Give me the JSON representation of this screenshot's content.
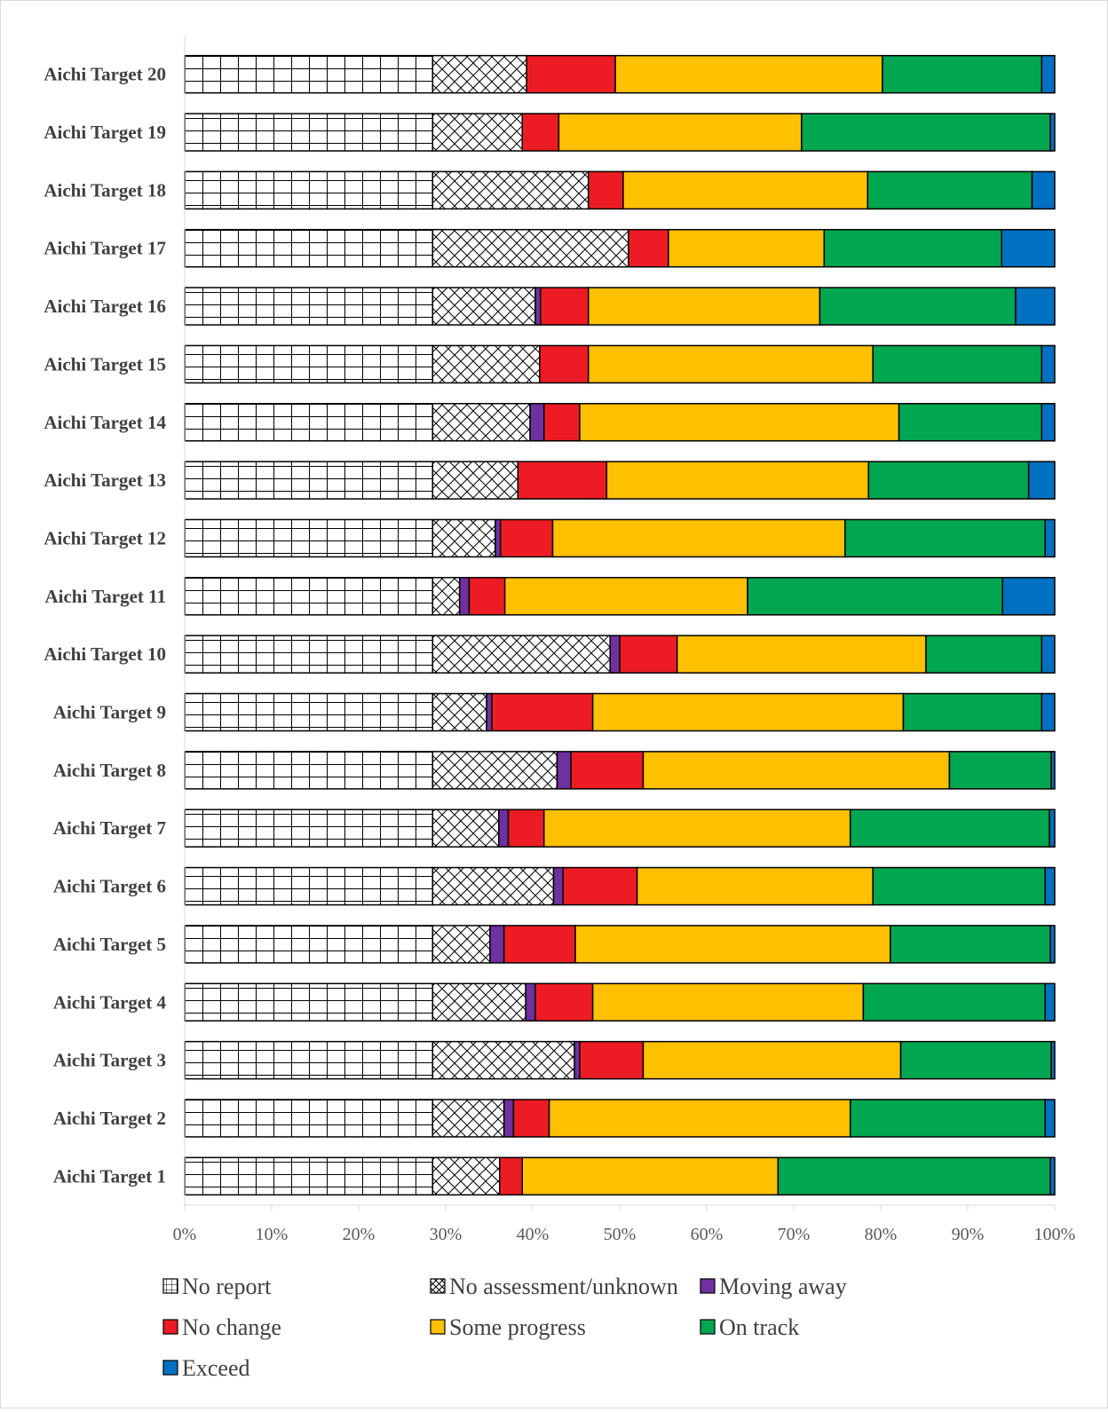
{
  "chart_data": {
    "type": "bar",
    "orientation": "horizontal",
    "stacked": "percent",
    "categories": [
      "Aichi Target 20",
      "Aichi Target 19",
      "Aichi Target 18",
      "Aichi Target 17",
      "Aichi Target 16",
      "Aichi Target 15",
      "Aichi Target 14",
      "Aichi Target 13",
      "Aichi Target 12",
      "Aichi Target 11",
      "Aichi Target 10",
      "Aichi Target 9",
      "Aichi Target 8",
      "Aichi Target 7",
      "Aichi Target 6",
      "Aichi Target 5",
      "Aichi Target 4",
      "Aichi Target 3",
      "Aichi Target 2",
      "Aichi Target 1"
    ],
    "series": [
      {
        "name": "No report",
        "color": "#ffffff",
        "pattern": "grid",
        "values": [
          28.5,
          28.5,
          28.5,
          28.5,
          28.5,
          28.5,
          28.5,
          28.5,
          28.5,
          28.5,
          28.5,
          28.5,
          28.5,
          28.5,
          28.5,
          28.5,
          28.5,
          28.5,
          28.5,
          28.5
        ]
      },
      {
        "name": "No assessment/unknown",
        "color": "#ffffff",
        "pattern": "crosshatch",
        "values": [
          10.8,
          10.3,
          17.9,
          22.5,
          11.8,
          12.3,
          11.2,
          9.8,
          7.2,
          3.1,
          20.4,
          6.2,
          14.3,
          7.6,
          13.9,
          6.6,
          10.7,
          16.3,
          8.2,
          7.7
        ]
      },
      {
        "name": "Moving away",
        "color": "#7030a0",
        "values": [
          0,
          0,
          0,
          0,
          0.6,
          0,
          1.6,
          0,
          0.6,
          1.1,
          1.1,
          0.6,
          1.6,
          1.1,
          1.1,
          1.6,
          1.1,
          0.6,
          1.1,
          0
        ]
      },
      {
        "name": "No change",
        "color": "#ed1c24",
        "values": [
          10.2,
          4.2,
          4.0,
          4.6,
          5.5,
          5.6,
          4.1,
          10.2,
          6.0,
          4.1,
          6.6,
          11.6,
          8.3,
          4.1,
          8.5,
          8.2,
          6.6,
          7.3,
          4.1,
          2.6
        ]
      },
      {
        "name": "Some progress",
        "color": "#ffc000",
        "values": [
          30.7,
          27.9,
          28.1,
          17.9,
          26.6,
          32.7,
          36.7,
          30.1,
          33.6,
          27.9,
          28.6,
          35.7,
          35.2,
          35.2,
          27.1,
          36.2,
          31.1,
          29.6,
          34.6,
          29.4
        ]
      },
      {
        "name": "On track",
        "color": "#00a650",
        "values": [
          18.3,
          28.6,
          18.9,
          20.4,
          22.5,
          19.4,
          16.4,
          18.4,
          23.0,
          29.3,
          13.3,
          15.9,
          11.7,
          22.9,
          19.8,
          18.4,
          20.9,
          17.3,
          22.4,
          31.3
        ]
      },
      {
        "name": "Exceed",
        "color": "#0070c0",
        "values": [
          1.5,
          0.5,
          2.6,
          6.1,
          4.5,
          1.5,
          1.5,
          3.0,
          1.1,
          6.0,
          1.5,
          1.5,
          0.4,
          0.6,
          1.1,
          0.5,
          1.1,
          0.4,
          1.1,
          0.5
        ]
      }
    ],
    "xlim": [
      0,
      100
    ],
    "x_ticks": [
      "0%",
      "10%",
      "20%",
      "30%",
      "40%",
      "50%",
      "60%",
      "70%",
      "80%",
      "90%",
      "100%"
    ],
    "legend_position": "bottom",
    "grid": false
  }
}
